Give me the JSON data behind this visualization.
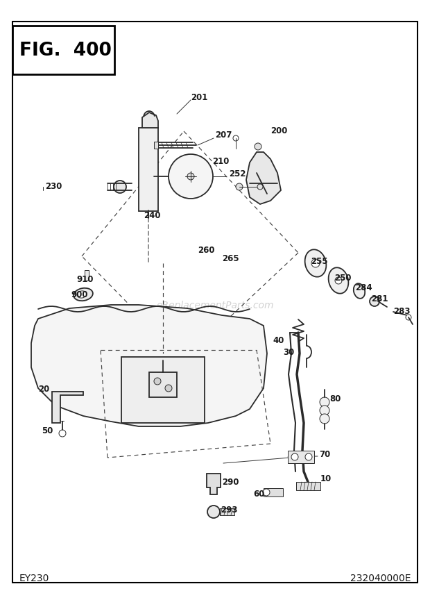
{
  "title": "FIG. 400",
  "bottom_left": "EY230",
  "bottom_right": "232040000E",
  "watermark": "eReplacementParts.com",
  "bg_color": "#ffffff",
  "line_color": "#2a2a2a",
  "lw_main": 1.3,
  "lw_thin": 0.7,
  "fig_width": 6.2,
  "fig_height": 8.78,
  "dpi": 100
}
